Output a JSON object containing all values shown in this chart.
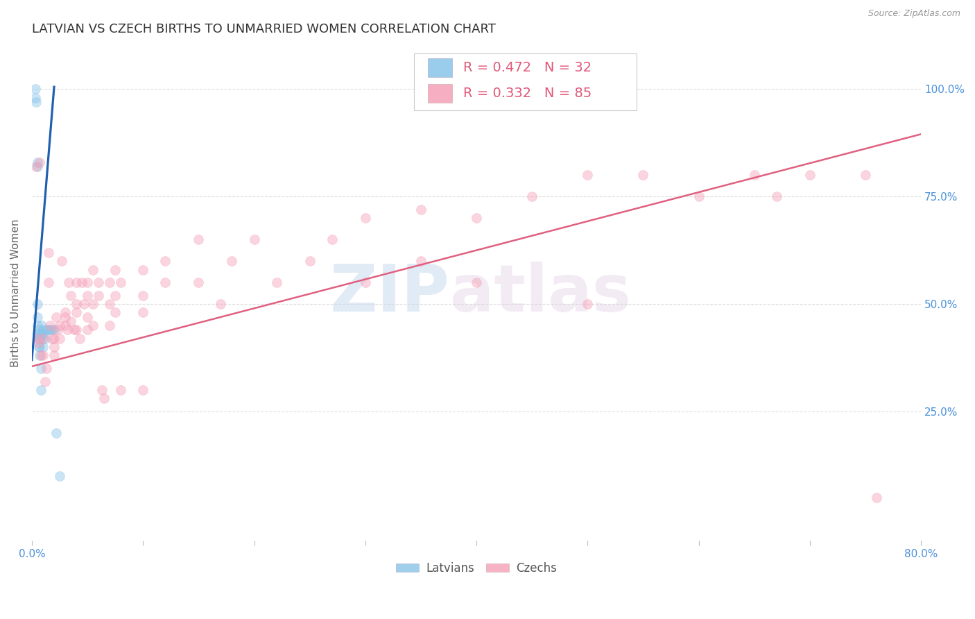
{
  "title": "LATVIAN VS CZECH BIRTHS TO UNMARRIED WOMEN CORRELATION CHART",
  "source": "Source: ZipAtlas.com",
  "ylabel": "Births to Unmarried Women",
  "xlim": [
    0.0,
    0.8
  ],
  "ylim": [
    -0.05,
    1.1
  ],
  "latvian_R": 0.472,
  "latvian_N": 32,
  "czech_R": 0.332,
  "czech_N": 85,
  "legend_latvian_label": "Latvians",
  "legend_czech_label": "Czechs",
  "latvian_color_scatter": "#89c4e8",
  "czech_color_scatter": "#f4a0b8",
  "latvian_color_line": "#2060b0",
  "czech_color_line": "#e06080",
  "latvian_scatter_x": [
    0.003,
    0.003,
    0.004,
    0.005,
    0.005,
    0.005,
    0.005,
    0.005,
    0.005,
    0.006,
    0.006,
    0.006,
    0.007,
    0.007,
    0.007,
    0.007,
    0.008,
    0.008,
    0.008,
    0.009,
    0.009,
    0.01,
    0.01,
    0.01,
    0.012,
    0.013,
    0.015,
    0.017,
    0.018,
    0.02,
    0.022,
    0.025
  ],
  "latvian_scatter_y": [
    1.0,
    0.98,
    0.97,
    0.83,
    0.82,
    0.5,
    0.47,
    0.45,
    0.43,
    0.44,
    0.42,
    0.4,
    0.43,
    0.42,
    0.4,
    0.38,
    0.42,
    0.35,
    0.3,
    0.45,
    0.43,
    0.44,
    0.43,
    0.4,
    0.42,
    0.44,
    0.44,
    0.44,
    0.44,
    0.44,
    0.2,
    0.1
  ],
  "czech_scatter_x": [
    0.004,
    0.005,
    0.006,
    0.007,
    0.008,
    0.01,
    0.01,
    0.012,
    0.013,
    0.015,
    0.015,
    0.016,
    0.018,
    0.02,
    0.02,
    0.02,
    0.022,
    0.023,
    0.025,
    0.025,
    0.027,
    0.03,
    0.03,
    0.03,
    0.032,
    0.033,
    0.035,
    0.035,
    0.038,
    0.04,
    0.04,
    0.04,
    0.04,
    0.043,
    0.045,
    0.047,
    0.05,
    0.05,
    0.05,
    0.05,
    0.055,
    0.055,
    0.055,
    0.06,
    0.06,
    0.063,
    0.065,
    0.07,
    0.07,
    0.07,
    0.075,
    0.075,
    0.075,
    0.08,
    0.08,
    0.1,
    0.1,
    0.1,
    0.1,
    0.12,
    0.12,
    0.15,
    0.15,
    0.17,
    0.18,
    0.2,
    0.22,
    0.25,
    0.27,
    0.3,
    0.3,
    0.35,
    0.35,
    0.4,
    0.4,
    0.45,
    0.5,
    0.5,
    0.55,
    0.6,
    0.65,
    0.67,
    0.7,
    0.75,
    0.76
  ],
  "czech_scatter_y": [
    0.82,
    0.42,
    0.41,
    0.83,
    0.38,
    0.42,
    0.38,
    0.32,
    0.35,
    0.62,
    0.55,
    0.45,
    0.42,
    0.42,
    0.4,
    0.38,
    0.47,
    0.44,
    0.45,
    0.42,
    0.6,
    0.48,
    0.47,
    0.45,
    0.44,
    0.55,
    0.52,
    0.46,
    0.44,
    0.55,
    0.5,
    0.48,
    0.44,
    0.42,
    0.55,
    0.5,
    0.55,
    0.52,
    0.47,
    0.44,
    0.58,
    0.5,
    0.45,
    0.55,
    0.52,
    0.3,
    0.28,
    0.55,
    0.5,
    0.45,
    0.58,
    0.52,
    0.48,
    0.55,
    0.3,
    0.58,
    0.52,
    0.48,
    0.3,
    0.6,
    0.55,
    0.65,
    0.55,
    0.5,
    0.6,
    0.65,
    0.55,
    0.6,
    0.65,
    0.7,
    0.55,
    0.72,
    0.6,
    0.7,
    0.55,
    0.75,
    0.8,
    0.5,
    0.8,
    0.75,
    0.8,
    0.75,
    0.8,
    0.8,
    0.05
  ],
  "latvian_line_x": [
    0.0,
    0.02
  ],
  "latvian_line_y": [
    0.37,
    1.005
  ],
  "czech_line_x": [
    0.0,
    0.8
  ],
  "czech_line_y": [
    0.355,
    0.895
  ],
  "background_color": "#ffffff",
  "grid_color": "#dddddd",
  "title_fontsize": 13,
  "axis_label_fontsize": 11,
  "tick_fontsize": 11,
  "scatter_size": 100,
  "scatter_alpha": 0.45,
  "line_width": 1.8
}
